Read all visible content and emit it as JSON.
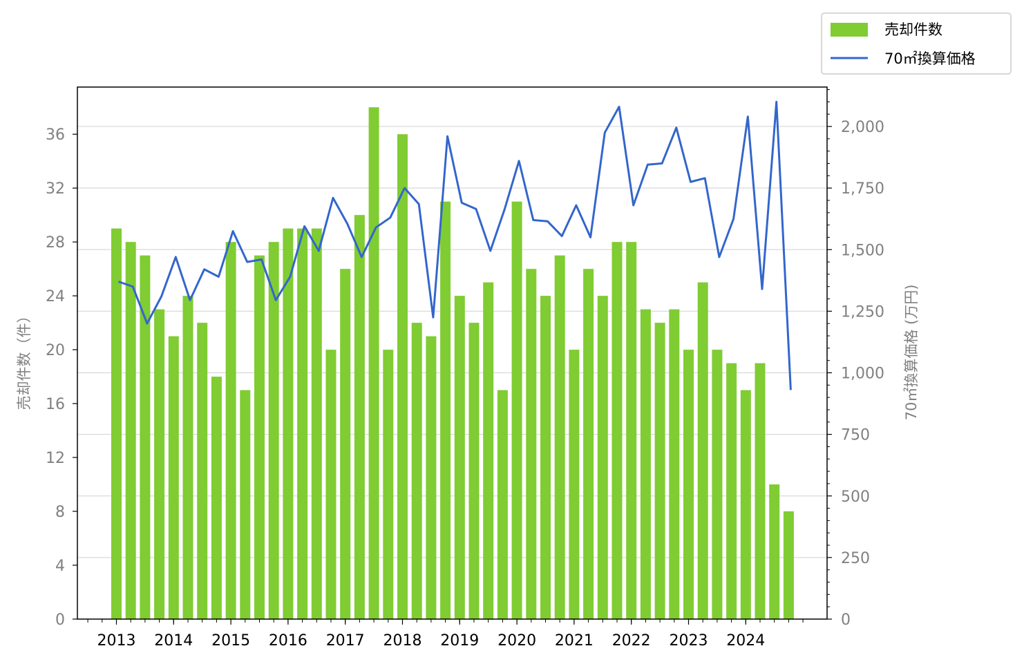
{
  "chart_data": {
    "type": "bar+line",
    "categories": [
      "2013-1",
      "2013-2",
      "2013-3",
      "2013-4",
      "2014-1",
      "2014-2",
      "2014-3",
      "2014-4",
      "2015-1",
      "2015-2",
      "2015-3",
      "2015-4",
      "2016-1",
      "2016-2",
      "2016-3",
      "2016-4",
      "2017-1",
      "2017-2",
      "2017-3",
      "2017-4",
      "2018-1",
      "2018-2",
      "2018-3",
      "2018-4",
      "2019-1",
      "2019-2",
      "2019-3",
      "2019-4",
      "2020-1",
      "2020-2",
      "2020-3",
      "2020-4",
      "2021-1",
      "2021-2",
      "2021-3",
      "2021-4",
      "2022-1",
      "2022-2",
      "2022-3",
      "2022-4",
      "2023-1",
      "2023-2",
      "2023-3",
      "2023-4",
      "2024-1",
      "2024-2",
      "2024-3",
      "2024-4"
    ],
    "x_tick_labels": [
      "2013",
      "2014",
      "2015",
      "2016",
      "2017",
      "2018",
      "2019",
      "2020",
      "2021",
      "2022",
      "2023",
      "2024"
    ],
    "series": [
      {
        "name": "売却件数",
        "axis": "left",
        "type": "bar",
        "color": "#80cc33",
        "values": [
          29,
          28,
          27,
          23,
          21,
          24,
          22,
          18,
          28,
          17,
          27,
          28,
          29,
          29,
          29,
          20,
          26,
          30,
          38,
          20,
          36,
          22,
          21,
          31,
          24,
          22,
          25,
          17,
          31,
          26,
          24,
          27,
          20,
          26,
          24,
          28,
          28,
          23,
          22,
          23,
          20,
          25,
          20,
          19,
          17,
          19,
          10,
          8
        ]
      },
      {
        "name": "70㎡換算価格",
        "axis": "right",
        "type": "line",
        "color": "#3366cc",
        "values": [
          1370,
          1350,
          1200,
          1310,
          1470,
          1295,
          1420,
          1390,
          1575,
          1450,
          1460,
          1295,
          1390,
          1595,
          1495,
          1710,
          1605,
          1470,
          1590,
          1630,
          1750,
          1685,
          1225,
          1960,
          1690,
          1665,
          1495,
          1665,
          1860,
          1620,
          1615,
          1555,
          1680,
          1550,
          1975,
          2080,
          1680,
          1845,
          1850,
          1995,
          1775,
          1790,
          1470,
          1625,
          2040,
          1340,
          2100,
          930
        ]
      }
    ],
    "y_left": {
      "label": "売却件数（件）",
      "ylim": [
        0,
        39.5
      ],
      "ticks": [
        0,
        4,
        8,
        12,
        16,
        20,
        24,
        28,
        32,
        36
      ]
    },
    "y_right": {
      "label": "70㎡換算価格 (万円)",
      "ylim": [
        0,
        2160
      ],
      "ticks": [
        0,
        250,
        500,
        750,
        1000,
        1250,
        1500,
        1750,
        2000
      ],
      "tick_labels": [
        "0",
        "250",
        "500",
        "750",
        "1,000",
        "1,250",
        "1,500",
        "1,750",
        "2,000"
      ]
    },
    "grid": "horizontal (right axis)",
    "legend": {
      "placement": "top-right outside",
      "entries": [
        "売却件数",
        "70㎡換算価格"
      ]
    }
  }
}
